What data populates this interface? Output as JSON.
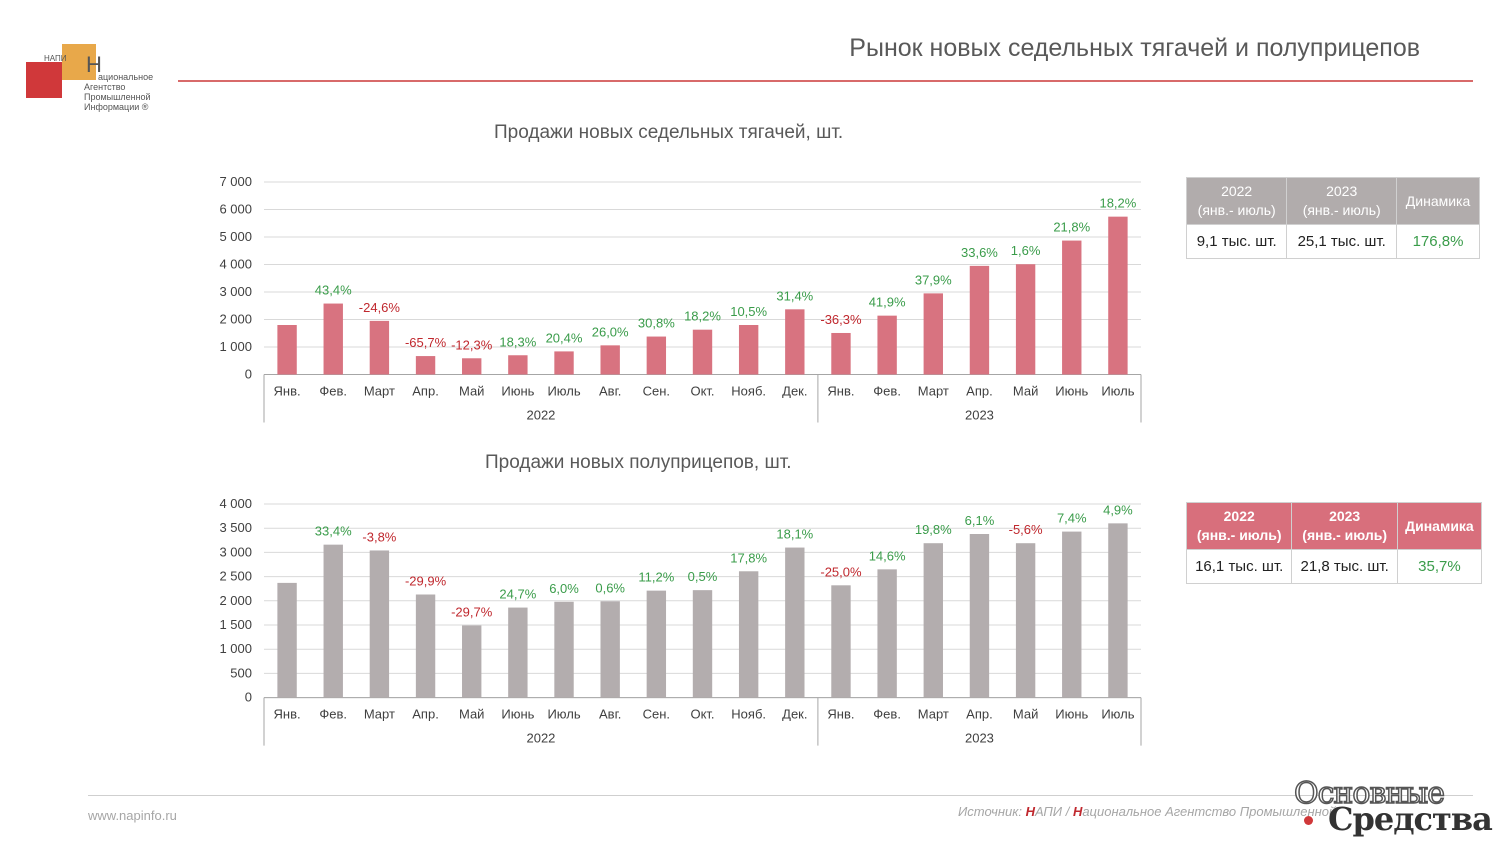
{
  "header": {
    "title": "Рынок новых седельных тягачей и полуприцепов"
  },
  "logo": {
    "abbr": "НАПИ",
    "letter": "Н",
    "line1": "ациональное",
    "line2": "Агентство",
    "line3": "Промышленной",
    "line4": "Информации ®"
  },
  "footer": {
    "site": "www.napinfo.ru",
    "source_prefix": "Источник: ",
    "source_n1": "Н",
    "source_mid": "АПИ / ",
    "source_n2": "Н",
    "source_tail": "ациональное Агентство Промышленной",
    "watermark_line1": "Основные",
    "watermark_line2": "Средства"
  },
  "colors": {
    "tractor_bar": "#d87380",
    "trailer_bar": "#b3adae",
    "positive": "#3a9c4a",
    "negative": "#c0282e",
    "accent": "#d86a6a"
  },
  "table1": {
    "h1": "2022",
    "h1b": "(янв.- июль)",
    "h2": "2023",
    "h2b": "(янв.- июль)",
    "h3": "Динамика",
    "v1": "9,1 тыс. шт.",
    "v2": "25,1 тыс. шт.",
    "v3": "176,8%"
  },
  "table2": {
    "h1": "2022",
    "h1b": "(янв.- июль)",
    "h2": "2023",
    "h2b": "(янв.- июль)",
    "h3": "Динамика",
    "v1": "16,1 тыс. шт.",
    "v2": "21,8 тыс. шт.",
    "v3": "35,7%"
  },
  "chart_data": [
    {
      "type": "bar",
      "title": "Продажи новых седельных тягачей, шт.",
      "categories": [
        "Янв.",
        "Фев.",
        "Март",
        "Апр.",
        "Май",
        "Июнь",
        "Июль",
        "Авг.",
        "Сен.",
        "Окт.",
        "Нояб.",
        "Дек.",
        "Янв.",
        "Фев.",
        "Март",
        "Апр.",
        "Май",
        "Июнь",
        "Июль"
      ],
      "groups": [
        {
          "label": "2022",
          "count": 12
        },
        {
          "label": "2023",
          "count": 7
        }
      ],
      "values": [
        1800,
        2580,
        1950,
        670,
        590,
        700,
        840,
        1060,
        1380,
        1630,
        1800,
        2370,
        1510,
        2140,
        2950,
        3950,
        4010,
        4870,
        5740
      ],
      "labels": [
        "",
        "43,4%",
        "-24,6%",
        "-65,7%",
        "-12,3%",
        "18,3%",
        "20,4%",
        "26,0%",
        "30,8%",
        "18,2%",
        "10,5%",
        "31,4%",
        "-36,3%",
        "41,9%",
        "37,9%",
        "33,6%",
        "1,6%",
        "21,8%",
        "18,2%"
      ],
      "yticks": [
        "0",
        "1 000",
        "2 000",
        "3 000",
        "4 000",
        "5 000",
        "6 000",
        "7 000"
      ],
      "ylim": [
        0,
        7000
      ],
      "ystep": 1000,
      "grid": true
    },
    {
      "type": "bar",
      "title": "Продажи новых полуприцепов, шт.",
      "categories": [
        "Янв.",
        "Фев.",
        "Март",
        "Апр.",
        "Май",
        "Июнь",
        "Июль",
        "Авг.",
        "Сен.",
        "Окт.",
        "Нояб.",
        "Дек.",
        "Янв.",
        "Фев.",
        "Март",
        "Апр.",
        "Май",
        "Июнь",
        "Июль"
      ],
      "groups": [
        {
          "label": "2022",
          "count": 12
        },
        {
          "label": "2023",
          "count": 7
        }
      ],
      "values": [
        2370,
        3160,
        3040,
        2130,
        1490,
        1860,
        1980,
        1990,
        2210,
        2220,
        2610,
        3100,
        2320,
        2650,
        3190,
        3380,
        3190,
        3430,
        3600
      ],
      "labels": [
        "",
        "33,4%",
        "-3,8%",
        "-29,9%",
        "-29,7%",
        "24,7%",
        "6,0%",
        "0,6%",
        "11,2%",
        "0,5%",
        "17,8%",
        "18,1%",
        "-25,0%",
        "14,6%",
        "19,8%",
        "6,1%",
        "-5,6%",
        "7,4%",
        "4,9%"
      ],
      "yticks": [
        "0",
        "500",
        "1 000",
        "1 500",
        "2 000",
        "2 500",
        "3 000",
        "3 500",
        "4 000"
      ],
      "ylim": [
        0,
        4000
      ],
      "ystep": 500,
      "grid": true
    }
  ]
}
